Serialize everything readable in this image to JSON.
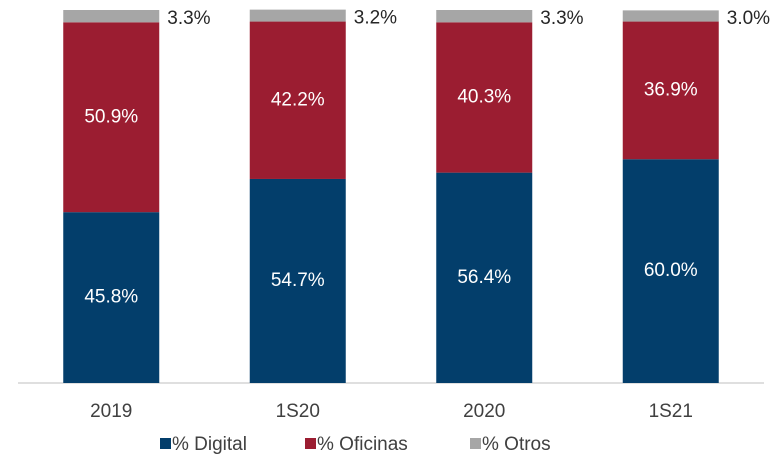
{
  "chart_data": {
    "type": "stacked_bar",
    "categories": [
      "2019",
      "1S20",
      "2020",
      "1S21"
    ],
    "series": [
      {
        "name": "% Digital",
        "color": "#033e6b",
        "values": [
          45.8,
          54.7,
          56.4,
          60.0
        ],
        "value_labels": [
          "45.8%",
          "54.7%",
          "56.4%",
          "60.0%"
        ]
      },
      {
        "name": "% Oficinas",
        "color": "#9b1d31",
        "values": [
          50.9,
          42.2,
          40.3,
          36.9
        ],
        "value_labels": [
          "50.9%",
          "42.2%",
          "40.3%",
          "36.9%"
        ]
      },
      {
        "name": "% Otros",
        "color": "#a6a6a6",
        "values": [
          3.3,
          3.2,
          3.3,
          3.0
        ],
        "value_labels": [
          "3.3%",
          "3.2%",
          "3.3%",
          "3.0%"
        ]
      }
    ],
    "ylim": [
      0,
      100
    ]
  }
}
